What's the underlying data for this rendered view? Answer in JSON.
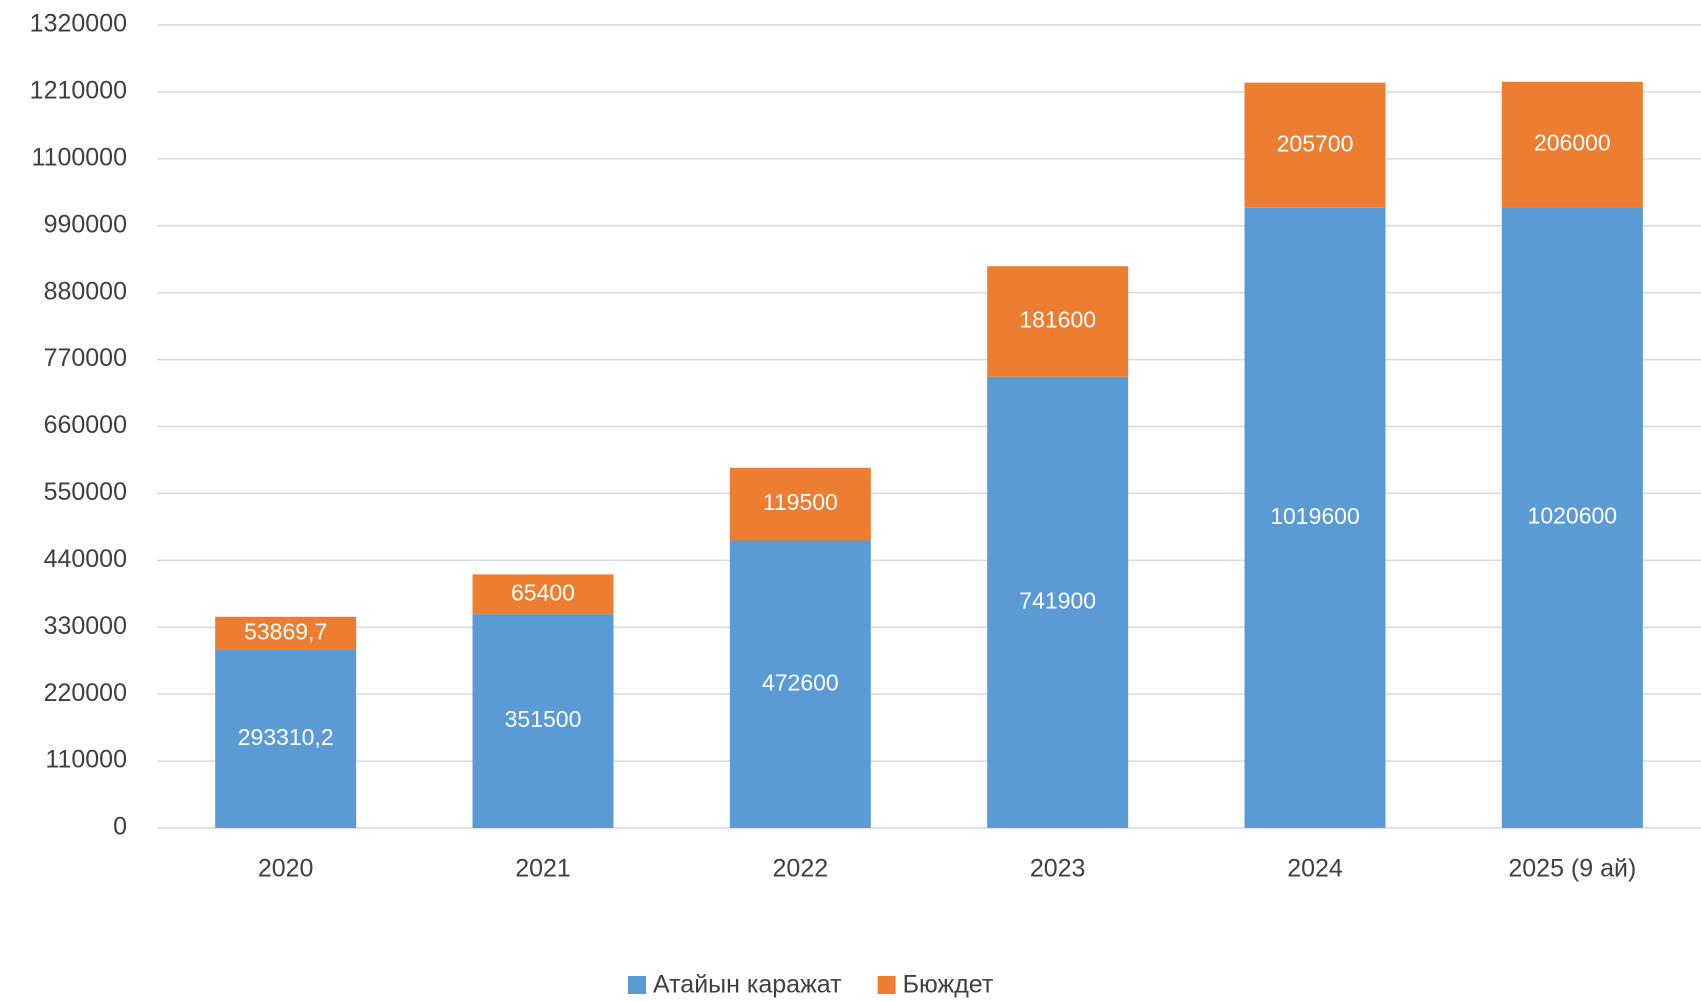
{
  "chart_data": {
    "type": "stacked_bar",
    "categories": [
      "2020",
      "2021",
      "2022",
      "2023",
      "2024",
      "2025 (9 ай)"
    ],
    "series": [
      {
        "name": "Атайын каражат",
        "color": "#5b9bd5",
        "values": [
          293310.2,
          351500,
          472600,
          741900,
          1019600,
          1020600
        ],
        "value_labels": [
          "293310,2",
          "351500",
          "472600",
          "741900",
          "1019600",
          "1020600"
        ]
      },
      {
        "name": "Бюждет",
        "color": "#ed7d31",
        "values": [
          53869.7,
          65400,
          119500,
          181600,
          205700,
          206000
        ],
        "value_labels": [
          "53869,7",
          "65400",
          "119500",
          "181600",
          "205700",
          "206000"
        ]
      }
    ],
    "ylim": [
      0,
      1320000
    ],
    "yticks": [
      0,
      110000,
      220000,
      330000,
      440000,
      550000,
      660000,
      770000,
      880000,
      990000,
      1100000,
      1210000,
      1320000
    ],
    "grid": true,
    "legend": "bottom"
  }
}
